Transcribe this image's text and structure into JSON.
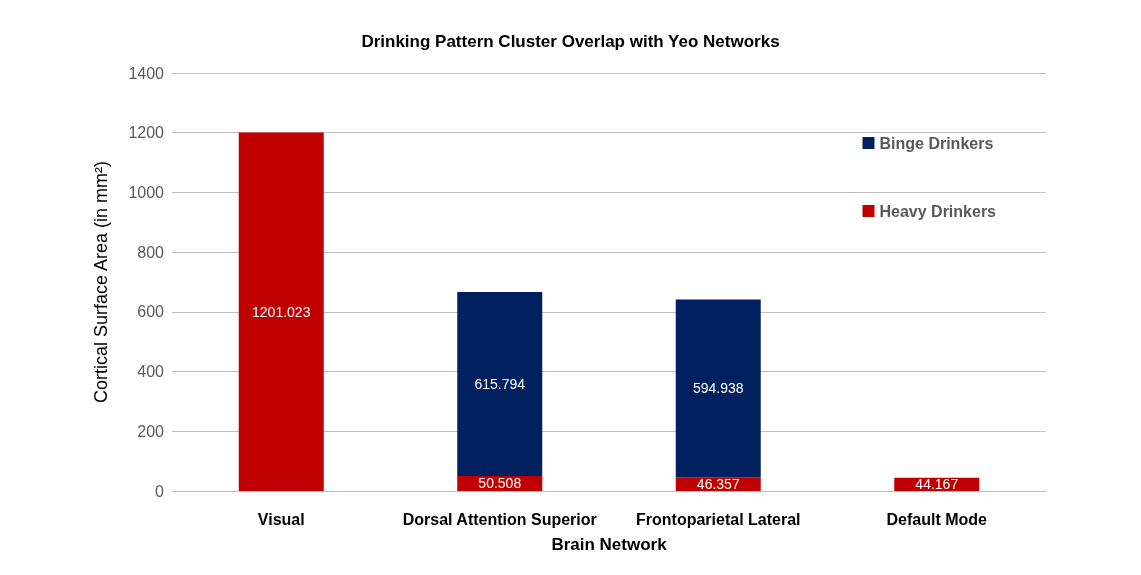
{
  "chart_data": {
    "type": "bar",
    "title": "Drinking Pattern Cluster Overlap with Yeo Networks",
    "xlabel": "Brain Network",
    "ylabel": "Cortical Surface Area (in mm²)",
    "categories": [
      "Visual",
      "Dorsal Attention Superior",
      "Frontoparietal Lateral",
      "Default Mode"
    ],
    "series": [
      {
        "name": "Heavy Drinkers",
        "color": "#c00000",
        "values": [
          1201.023,
          50.508,
          46.357,
          44.167
        ]
      },
      {
        "name": "Binge Drinkers",
        "color": "#002060",
        "values": [
          null,
          615.794,
          594.938,
          null
        ]
      }
    ],
    "stacked": true,
    "data_labels": true,
    "ylim": [
      0,
      1400
    ],
    "yticks": [
      0,
      200,
      400,
      600,
      800,
      1000,
      1200,
      1400
    ],
    "grid": "y",
    "legend": "top right"
  }
}
